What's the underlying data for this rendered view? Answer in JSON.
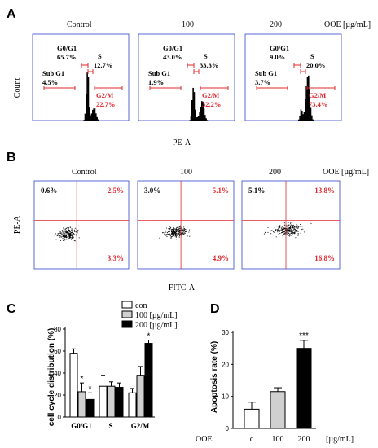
{
  "panel_labels": {
    "A": "A",
    "B": "B",
    "C": "C",
    "D": "D"
  },
  "colors": {
    "axis_blue": "#3344cc",
    "red": "#e0282e",
    "black": "#000000",
    "grey": "#d0d0d0"
  },
  "panelA": {
    "conditions": [
      "Control",
      "100",
      "200"
    ],
    "unit_label": "OOE [µg/mL]",
    "y_label": "Count",
    "x_label": "PE-A",
    "histograms": [
      {
        "g0g1_label": "G0/G1",
        "g0g1": "65.7%",
        "s_label": "S",
        "s": "12.7%",
        "subg1_label": "Sub G1",
        "subg1": "4.5%",
        "g2m_label": "G2/M",
        "g2m": "22.7%"
      },
      {
        "g0g1_label": "G0/G1",
        "g0g1": "43.0%",
        "s_label": "S",
        "s": "33.3%",
        "subg1_label": "Sub G1",
        "subg1": "1.9%",
        "g2m_label": "G2/M",
        "g2m": "32.2%"
      },
      {
        "g0g1_label": "G0/G1",
        "g0g1": "9.0%",
        "s_label": "S",
        "s": "20.0%",
        "subg1_label": "Sub G1",
        "subg1": "3.7%",
        "g2m_label": "G2/M",
        "g2m": "73.4%"
      }
    ]
  },
  "panelB": {
    "conditions": [
      "Control",
      "100",
      "200"
    ],
    "unit_label": "OOE [µg/mL]",
    "y_label": "PE-A",
    "x_label": "FITC-A",
    "plots": [
      {
        "ul": "0.6%",
        "ur": "2.5%",
        "lr": "3.3%"
      },
      {
        "ul": "3.0%",
        "ur": "5.1%",
        "lr": "4.9%"
      },
      {
        "ul": "5.1%",
        "ur": "13.8%",
        "lr": "16.8%"
      }
    ]
  },
  "chart_data": [
    {
      "type": "bar",
      "ylabel": "cell cycle distribution (%)",
      "ylim": [
        0,
        80
      ],
      "yticks": [
        "0",
        "20",
        "40",
        "60",
        "80"
      ],
      "categories": [
        "G0/G1",
        "S",
        "G2/M"
      ],
      "legend": [
        "con",
        "100 [µg/mL]",
        "200 [µg/mL]"
      ],
      "series": [
        {
          "name": "con",
          "values": [
            58,
            28,
            22
          ],
          "errors": [
            4,
            10,
            4
          ],
          "color": "#ffffff"
        },
        {
          "name": "100 [µg/mL]",
          "values": [
            23,
            28,
            38
          ],
          "errors": [
            8,
            4,
            8
          ],
          "color": "#d0d0d0"
        },
        {
          "name": "200 [µg/mL]",
          "values": [
            16,
            27,
            67
          ],
          "errors": [
            6,
            4,
            3
          ],
          "color": "#000000"
        }
      ],
      "stars": [
        {
          "cat": 0,
          "series": 1,
          "text": "*"
        },
        {
          "cat": 0,
          "series": 2,
          "text": "*"
        },
        {
          "cat": 2,
          "series": 2,
          "text": "*"
        }
      ]
    },
    {
      "type": "bar",
      "ylabel": "Apoptosis rate (%)",
      "ylim": [
        0,
        30
      ],
      "yticks": [
        "0",
        "10",
        "20",
        "30"
      ],
      "x_prefix": "OOE",
      "categories": [
        "c",
        "100",
        "200"
      ],
      "x_unit": "[µg/mL]",
      "values": [
        6,
        11.5,
        25
      ],
      "errors": [
        2.2,
        1.2,
        2.5
      ],
      "colors": [
        "#ffffff",
        "#d0d0d0",
        "#000000"
      ],
      "stars": [
        {
          "index": 2,
          "text": "***"
        }
      ]
    }
  ]
}
